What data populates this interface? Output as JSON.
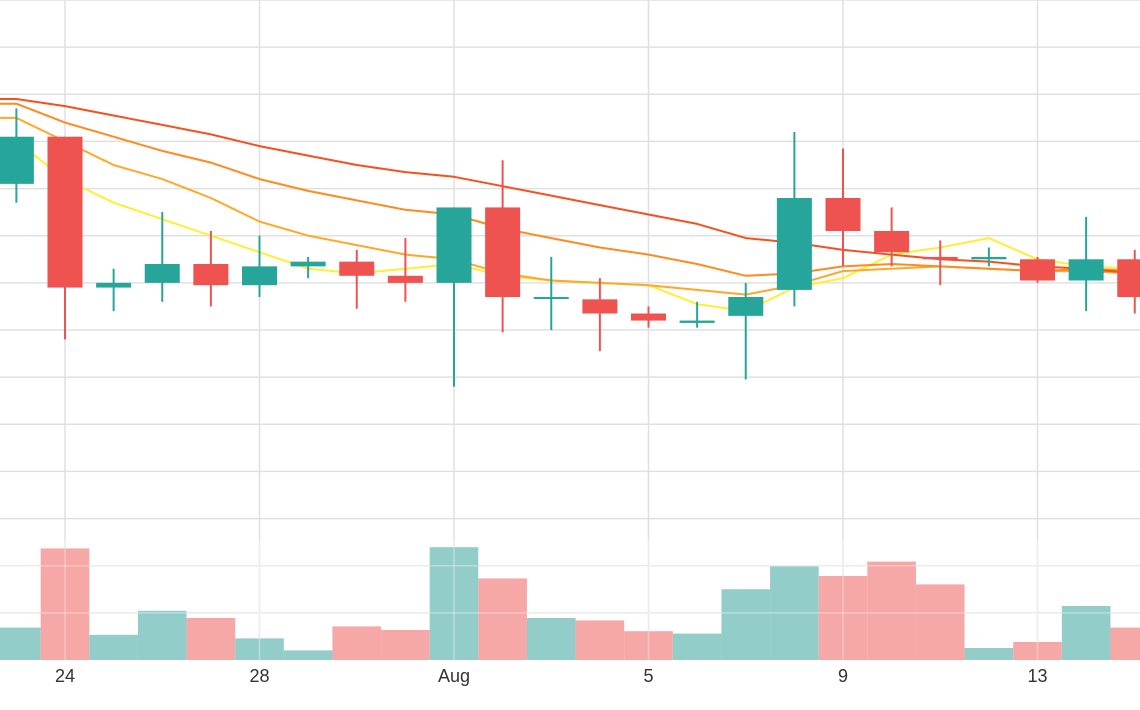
{
  "chart_data": {
    "type": "candlestick",
    "x_tick_labels": [
      {
        "date": "2023-07-24",
        "label": "24"
      },
      {
        "date": "2023-07-28",
        "label": "28"
      },
      {
        "date": "2023-08-01",
        "label": "Aug"
      },
      {
        "date": "2023-08-05",
        "label": "5"
      },
      {
        "date": "2023-08-09",
        "label": "9"
      },
      {
        "date": "2023-08-13",
        "label": "13"
      }
    ],
    "grid": true,
    "price_range": [
      0,
      14
    ],
    "volume_range": [
      0,
      100
    ],
    "candles": [
      {
        "date": "2023-07-23",
        "open": 10.1,
        "high": 11.7,
        "low": 9.7,
        "close": 11.1
      },
      {
        "date": "2023-07-24",
        "open": 11.1,
        "high": 11.1,
        "low": 6.8,
        "close": 7.9
      },
      {
        "date": "2023-07-25",
        "open": 7.9,
        "high": 8.3,
        "low": 7.4,
        "close": 8.0
      },
      {
        "date": "2023-07-26",
        "open": 8.0,
        "high": 9.5,
        "low": 7.6,
        "close": 8.4
      },
      {
        "date": "2023-07-27",
        "open": 8.4,
        "high": 9.1,
        "low": 7.5,
        "close": 7.95
      },
      {
        "date": "2023-07-28",
        "open": 7.95,
        "high": 9.0,
        "low": 7.7,
        "close": 8.35
      },
      {
        "date": "2023-07-29",
        "open": 8.35,
        "high": 8.55,
        "low": 8.1,
        "close": 8.45
      },
      {
        "date": "2023-07-30",
        "open": 8.45,
        "high": 8.7,
        "low": 7.45,
        "close": 8.15
      },
      {
        "date": "2023-07-31",
        "open": 8.15,
        "high": 8.95,
        "low": 7.6,
        "close": 8.0
      },
      {
        "date": "2023-08-01",
        "open": 8.0,
        "high": 9.6,
        "low": 5.8,
        "close": 9.6
      },
      {
        "date": "2023-08-02",
        "open": 9.6,
        "high": 10.6,
        "low": 6.95,
        "close": 7.7
      },
      {
        "date": "2023-08-03",
        "open": 7.7,
        "high": 8.55,
        "low": 7.0,
        "close": 7.7
      },
      {
        "date": "2023-08-04",
        "open": 7.65,
        "high": 8.1,
        "low": 6.55,
        "close": 7.35
      },
      {
        "date": "2023-08-05",
        "open": 7.35,
        "high": 7.5,
        "low": 7.05,
        "close": 7.2
      },
      {
        "date": "2023-08-06",
        "open": 7.15,
        "high": 7.6,
        "low": 7.05,
        "close": 7.2
      },
      {
        "date": "2023-08-07",
        "open": 7.3,
        "high": 8.0,
        "low": 5.95,
        "close": 7.7
      },
      {
        "date": "2023-08-08",
        "open": 7.85,
        "high": 11.2,
        "low": 7.5,
        "close": 9.8
      },
      {
        "date": "2023-08-09",
        "open": 9.8,
        "high": 10.85,
        "low": 8.35,
        "close": 9.1
      },
      {
        "date": "2023-08-10",
        "open": 9.1,
        "high": 9.6,
        "low": 8.35,
        "close": 8.65
      },
      {
        "date": "2023-08-11",
        "open": 8.55,
        "high": 8.9,
        "low": 7.95,
        "close": 8.5
      },
      {
        "date": "2023-08-12",
        "open": 8.5,
        "high": 8.75,
        "low": 8.35,
        "close": 8.55
      },
      {
        "date": "2023-08-13",
        "open": 8.5,
        "high": 8.55,
        "low": 8.0,
        "close": 8.05
      },
      {
        "date": "2023-08-14",
        "open": 8.05,
        "high": 9.4,
        "low": 7.4,
        "close": 8.5
      },
      {
        "date": "2023-08-15",
        "open": 8.5,
        "high": 8.7,
        "low": 7.35,
        "close": 7.7
      }
    ],
    "volume": [
      {
        "date": "2023-07-23",
        "value": 27
      },
      {
        "date": "2023-07-24",
        "value": 93
      },
      {
        "date": "2023-07-25",
        "value": 21
      },
      {
        "date": "2023-07-26",
        "value": 41
      },
      {
        "date": "2023-07-27",
        "value": 35
      },
      {
        "date": "2023-07-28",
        "value": 18
      },
      {
        "date": "2023-07-29",
        "value": 8
      },
      {
        "date": "2023-07-30",
        "value": 28
      },
      {
        "date": "2023-07-31",
        "value": 25
      },
      {
        "date": "2023-08-01",
        "value": 94
      },
      {
        "date": "2023-08-02",
        "value": 68
      },
      {
        "date": "2023-08-03",
        "value": 35
      },
      {
        "date": "2023-08-04",
        "value": 33
      },
      {
        "date": "2023-08-05",
        "value": 24
      },
      {
        "date": "2023-08-06",
        "value": 22
      },
      {
        "date": "2023-08-07",
        "value": 59
      },
      {
        "date": "2023-08-08",
        "value": 78
      },
      {
        "date": "2023-08-09",
        "value": 70
      },
      {
        "date": "2023-08-10",
        "value": 82
      },
      {
        "date": "2023-08-11",
        "value": 63
      },
      {
        "date": "2023-08-12",
        "value": 10
      },
      {
        "date": "2023-08-13",
        "value": 15
      },
      {
        "date": "2023-08-14",
        "value": 45
      },
      {
        "date": "2023-08-15",
        "value": 27
      }
    ],
    "moving_averages": [
      {
        "color": "#ffee33",
        "values": [
          {
            "date": "2023-07-23",
            "value": 11.0
          },
          {
            "date": "2023-07-24",
            "value": 10.2
          },
          {
            "date": "2023-07-25",
            "value": 9.7
          },
          {
            "date": "2023-07-26",
            "value": 9.35
          },
          {
            "date": "2023-07-27",
            "value": 9.0
          },
          {
            "date": "2023-07-28",
            "value": 8.65
          },
          {
            "date": "2023-07-29",
            "value": 8.3
          },
          {
            "date": "2023-07-30",
            "value": 8.2
          },
          {
            "date": "2023-07-31",
            "value": 8.3
          },
          {
            "date": "2023-08-01",
            "value": 8.4
          },
          {
            "date": "2023-08-02",
            "value": 8.15
          },
          {
            "date": "2023-08-03",
            "value": 8.05
          },
          {
            "date": "2023-08-04",
            "value": 8.0
          },
          {
            "date": "2023-08-05",
            "value": 7.95
          },
          {
            "date": "2023-08-06",
            "value": 7.55
          },
          {
            "date": "2023-08-07",
            "value": 7.4
          },
          {
            "date": "2023-08-08",
            "value": 7.9
          },
          {
            "date": "2023-08-09",
            "value": 8.1
          },
          {
            "date": "2023-08-10",
            "value": 8.6
          },
          {
            "date": "2023-08-11",
            "value": 8.75
          },
          {
            "date": "2023-08-12",
            "value": 8.95
          },
          {
            "date": "2023-08-13",
            "value": 8.5
          },
          {
            "date": "2023-08-14",
            "value": 8.35
          },
          {
            "date": "2023-08-15",
            "value": 8.3
          }
        ]
      },
      {
        "color": "#ffa726",
        "values": [
          {
            "date": "2023-07-23",
            "value": 11.5
          },
          {
            "date": "2023-07-24",
            "value": 11.0
          },
          {
            "date": "2023-07-25",
            "value": 10.5
          },
          {
            "date": "2023-07-26",
            "value": 10.2
          },
          {
            "date": "2023-07-27",
            "value": 9.8
          },
          {
            "date": "2023-07-28",
            "value": 9.3
          },
          {
            "date": "2023-07-29",
            "value": 9.0
          },
          {
            "date": "2023-07-30",
            "value": 8.8
          },
          {
            "date": "2023-07-31",
            "value": 8.6
          },
          {
            "date": "2023-08-01",
            "value": 8.5
          },
          {
            "date": "2023-08-02",
            "value": 8.2
          },
          {
            "date": "2023-08-03",
            "value": 8.05
          },
          {
            "date": "2023-08-04",
            "value": 8.0
          },
          {
            "date": "2023-08-05",
            "value": 7.95
          },
          {
            "date": "2023-08-06",
            "value": 7.85
          },
          {
            "date": "2023-08-07",
            "value": 7.75
          },
          {
            "date": "2023-08-08",
            "value": 7.95
          },
          {
            "date": "2023-08-09",
            "value": 8.25
          },
          {
            "date": "2023-08-10",
            "value": 8.3
          },
          {
            "date": "2023-08-11",
            "value": 8.35
          },
          {
            "date": "2023-08-12",
            "value": 8.3
          },
          {
            "date": "2023-08-13",
            "value": 8.25
          },
          {
            "date": "2023-08-14",
            "value": 8.25
          },
          {
            "date": "2023-08-15",
            "value": 8.2
          }
        ]
      },
      {
        "color": "#ff8a1f",
        "values": [
          {
            "date": "2023-07-23",
            "value": 11.8
          },
          {
            "date": "2023-07-24",
            "value": 11.4
          },
          {
            "date": "2023-07-25",
            "value": 11.1
          },
          {
            "date": "2023-07-26",
            "value": 10.8
          },
          {
            "date": "2023-07-27",
            "value": 10.55
          },
          {
            "date": "2023-07-28",
            "value": 10.2
          },
          {
            "date": "2023-07-29",
            "value": 9.95
          },
          {
            "date": "2023-07-30",
            "value": 9.75
          },
          {
            "date": "2023-07-31",
            "value": 9.55
          },
          {
            "date": "2023-08-01",
            "value": 9.45
          },
          {
            "date": "2023-08-02",
            "value": 9.15
          },
          {
            "date": "2023-08-03",
            "value": 8.95
          },
          {
            "date": "2023-08-04",
            "value": 8.75
          },
          {
            "date": "2023-08-05",
            "value": 8.6
          },
          {
            "date": "2023-08-06",
            "value": 8.4
          },
          {
            "date": "2023-08-07",
            "value": 8.15
          },
          {
            "date": "2023-08-08",
            "value": 8.2
          },
          {
            "date": "2023-08-09",
            "value": 8.35
          },
          {
            "date": "2023-08-10",
            "value": 8.4
          },
          {
            "date": "2023-08-11",
            "value": 8.35
          },
          {
            "date": "2023-08-12",
            "value": 8.3
          },
          {
            "date": "2023-08-13",
            "value": 8.25
          },
          {
            "date": "2023-08-14",
            "value": 8.3
          },
          {
            "date": "2023-08-15",
            "value": 8.25
          }
        ]
      },
      {
        "color": "#f4511e",
        "values": [
          {
            "date": "2023-07-23",
            "value": 11.9
          },
          {
            "date": "2023-07-24",
            "value": 11.75
          },
          {
            "date": "2023-07-25",
            "value": 11.55
          },
          {
            "date": "2023-07-26",
            "value": 11.35
          },
          {
            "date": "2023-07-27",
            "value": 11.15
          },
          {
            "date": "2023-07-28",
            "value": 10.9
          },
          {
            "date": "2023-07-29",
            "value": 10.7
          },
          {
            "date": "2023-07-30",
            "value": 10.5
          },
          {
            "date": "2023-07-31",
            "value": 10.35
          },
          {
            "date": "2023-08-01",
            "value": 10.25
          },
          {
            "date": "2023-08-02",
            "value": 10.05
          },
          {
            "date": "2023-08-03",
            "value": 9.85
          },
          {
            "date": "2023-08-04",
            "value": 9.65
          },
          {
            "date": "2023-08-05",
            "value": 9.45
          },
          {
            "date": "2023-08-06",
            "value": 9.25
          },
          {
            "date": "2023-08-07",
            "value": 8.95
          },
          {
            "date": "2023-08-08",
            "value": 8.85
          },
          {
            "date": "2023-08-09",
            "value": 8.7
          },
          {
            "date": "2023-08-10",
            "value": 8.6
          },
          {
            "date": "2023-08-11",
            "value": 8.5
          },
          {
            "date": "2023-08-12",
            "value": 8.45
          },
          {
            "date": "2023-08-13",
            "value": 8.35
          },
          {
            "date": "2023-08-14",
            "value": 8.3
          },
          {
            "date": "2023-08-15",
            "value": 8.2
          }
        ]
      }
    ],
    "colors": {
      "up": "#26a69a",
      "down": "#ef5350",
      "volume_up": "#92cdca",
      "volume_down": "#f5a8a5",
      "grid": "#e0e0e0"
    }
  }
}
